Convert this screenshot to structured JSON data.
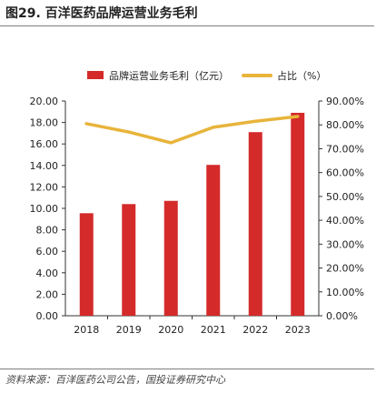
{
  "figure": {
    "title": "图29. 百洋医药品牌运营业务毛利",
    "source": "资料来源：百洋医药公司公告，国投证券研究中心"
  },
  "colors": {
    "bar": "#d42a2a",
    "line": "#e8b43a",
    "axis": "#333333"
  },
  "chart_data": {
    "type": "bar",
    "categories": [
      "2018",
      "2019",
      "2020",
      "2021",
      "2022",
      "2023"
    ],
    "series": [
      {
        "name": "品牌运营业务毛利（亿元）",
        "type": "bar",
        "axis": "left",
        "values": [
          9.55,
          10.4,
          10.7,
          14.05,
          17.1,
          18.9
        ]
      },
      {
        "name": "占比（%）",
        "type": "line",
        "axis": "right",
        "values": [
          80.5,
          77.0,
          72.5,
          79.0,
          81.5,
          83.5
        ]
      }
    ],
    "y_left": {
      "min": 0,
      "max": 20,
      "step": 2,
      "ticks": [
        "0.00",
        "2.00",
        "4.00",
        "6.00",
        "8.00",
        "10.00",
        "12.00",
        "14.00",
        "16.00",
        "18.00",
        "20.00"
      ]
    },
    "y_right": {
      "min": 0,
      "max": 90,
      "step": 10,
      "ticks": [
        "0.00%",
        "10.00%",
        "20.00%",
        "30.00%",
        "40.00%",
        "50.00%",
        "60.00%",
        "70.00%",
        "80.00%",
        "90.00%"
      ]
    },
    "legend_position": "top",
    "grid": false
  }
}
